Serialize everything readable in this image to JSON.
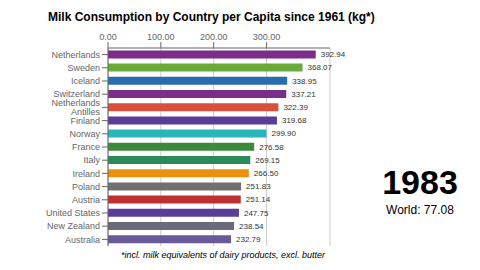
{
  "chart_data": {
    "type": "bar",
    "orientation": "horizontal",
    "title": "Milk Consumption by Country per Capita since 1961 (kg*)",
    "subtitle": "*incl. milk equivalents of dairy products, excl. butter",
    "annotations": [
      "1983",
      "World: 77.08"
    ],
    "categories": [
      "Netherlands",
      "Sweden",
      "Iceland",
      "Switzerland",
      "Netherlands Antilles",
      "Finland",
      "Norway",
      "France",
      "Italy",
      "Ireland",
      "Poland",
      "Austria",
      "United States",
      "New Zealand",
      "Australia"
    ],
    "values": [
      392.94,
      368.07,
      338.95,
      337.21,
      322.39,
      319.68,
      299.9,
      276.58,
      269.15,
      266.5,
      251.83,
      251.14,
      247.75,
      238.54,
      232.79
    ],
    "value_labels": [
      "392.94",
      "368.07",
      "338.95",
      "337.21",
      "322.39",
      "319.68",
      "299.90",
      "276.58",
      "269.15",
      "266.50",
      "251.83",
      "251.14",
      "247.75",
      "238.54",
      "232.79"
    ],
    "data_labels": true,
    "colors": [
      "#7b2d8b",
      "#6aaa3a",
      "#2b6cb0",
      "#7b2d8b",
      "#d94f3d",
      "#5a3d9a",
      "#2ab5b8",
      "#3a8a3a",
      "#2a8a5a",
      "#e8930a",
      "#707070",
      "#c03030",
      "#5a3d9a",
      "#6a6a7a",
      "#6a5a9a"
    ],
    "xlim": [
      0,
      420
    ],
    "xticks": [
      {
        "value": 0,
        "label": "0.00"
      },
      {
        "value": 100,
        "label": "100.00"
      },
      {
        "value": 200,
        "label": "200.00"
      },
      {
        "value": 300,
        "label": "300.00"
      }
    ],
    "grid": true
  }
}
